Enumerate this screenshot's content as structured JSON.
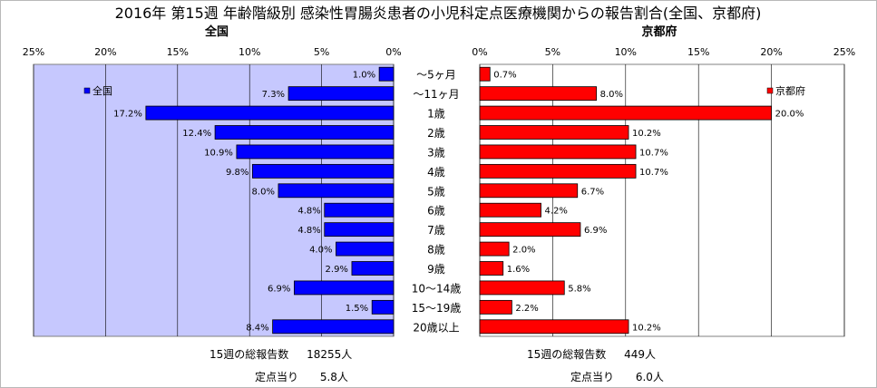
{
  "chart_data": {
    "type": "bar",
    "title": "2016年 第15週 年齢階級別 感染性胃腸炎患者の小児科定点医療機関からの報告割合(全国、京都府)",
    "categories": [
      "～5ヶ月",
      "～11ヶ月",
      "1歳",
      "2歳",
      "3歳",
      "4歳",
      "5歳",
      "6歳",
      "7歳",
      "8歳",
      "9歳",
      "10～14歳",
      "15～19歳",
      "20歳以上"
    ],
    "ticks": [
      "25%",
      "20%",
      "15%",
      "10%",
      "5%",
      "0%"
    ],
    "ticks_right": [
      "0%",
      "5%",
      "10%",
      "15%",
      "20%",
      "25%"
    ],
    "xlim": [
      0,
      25
    ],
    "grid": true,
    "series": [
      {
        "name": "全国",
        "panel_title": "全国",
        "legend": "全国",
        "legend_position": "top-left",
        "color": "#0000ff",
        "values": [
          1.0,
          7.3,
          17.2,
          12.4,
          10.9,
          9.8,
          8.0,
          4.8,
          4.8,
          4.0,
          2.9,
          6.9,
          1.5,
          8.4
        ],
        "labels": [
          "1.0%",
          "7.3%",
          "17.2%",
          "12.4%",
          "10.9%",
          "9.8%",
          "8.0%",
          "4.8%",
          "4.8%",
          "4.0%",
          "2.9%",
          "6.9%",
          "1.5%",
          "8.4%"
        ],
        "plot_background": "#c6c8fe"
      },
      {
        "name": "京都府",
        "panel_title": "京都府",
        "legend": "京都府",
        "legend_position": "top-right",
        "color": "#ff0000",
        "values": [
          0.7,
          8.0,
          20.0,
          10.2,
          10.7,
          10.7,
          6.7,
          4.2,
          6.9,
          2.0,
          1.6,
          5.8,
          2.2,
          10.2
        ],
        "labels": [
          "0.7%",
          "8.0%",
          "20.0%",
          "10.2%",
          "10.7%",
          "10.7%",
          "6.7%",
          "4.2%",
          "6.9%",
          "2.0%",
          "1.6%",
          "5.8%",
          "2.2%",
          "10.2%"
        ],
        "plot_background": "#ffffff"
      }
    ]
  },
  "footer": {
    "national": {
      "total_label": "15週の総報告数",
      "total_value": "18255人",
      "per_label": "定点当り",
      "per_value": "5.8人"
    },
    "kyoto": {
      "total_label": "15週の総報告数",
      "total_value": "449人",
      "per_label": "定点当り",
      "per_value": "6.0人"
    }
  }
}
